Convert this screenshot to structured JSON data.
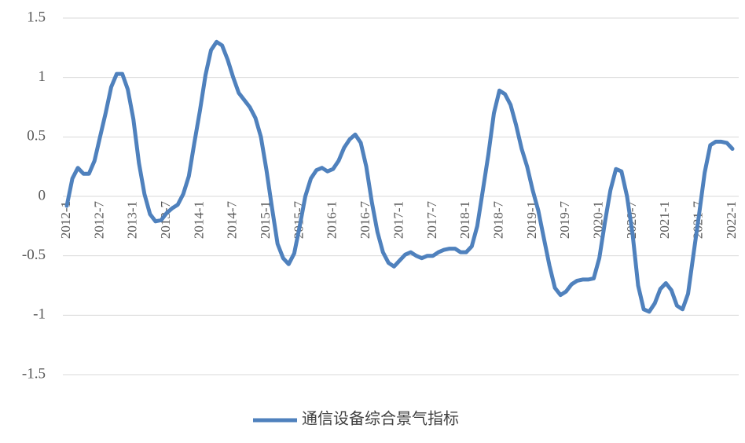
{
  "chart_data": {
    "type": "line",
    "categories": [
      "2012-1",
      null,
      null,
      null,
      null,
      null,
      "2012-7",
      null,
      null,
      null,
      null,
      null,
      "2013-1",
      null,
      null,
      null,
      null,
      null,
      "2013-7",
      null,
      null,
      null,
      null,
      null,
      "2014-1",
      null,
      null,
      null,
      null,
      null,
      "2014-7",
      null,
      null,
      null,
      null,
      null,
      "2015-1",
      null,
      null,
      null,
      null,
      null,
      "2015-7",
      null,
      null,
      null,
      null,
      null,
      "2016-1",
      null,
      null,
      null,
      null,
      null,
      "2016-7",
      null,
      null,
      null,
      null,
      null,
      "2017-1",
      null,
      null,
      null,
      null,
      null,
      "2017-7",
      null,
      null,
      null,
      null,
      null,
      "2018-1",
      null,
      null,
      null,
      null,
      null,
      "2018-7",
      null,
      null,
      null,
      null,
      null,
      "2019-1",
      null,
      null,
      null,
      null,
      null,
      "2019-7",
      null,
      null,
      null,
      null,
      null,
      "2020-1",
      null,
      null,
      null,
      null,
      null,
      "2020-7",
      null,
      null,
      null,
      null,
      null,
      "2021-1",
      null,
      null,
      null,
      null,
      null,
      "2021-7",
      null,
      null,
      null,
      null,
      null,
      "2022-1"
    ],
    "series": [
      {
        "name": "通信设备综合景气指标",
        "color": "#4f81bd",
        "values": [
          -0.08,
          0.15,
          0.24,
          0.19,
          0.19,
          0.3,
          0.5,
          0.7,
          0.92,
          1.03,
          1.03,
          0.9,
          0.65,
          0.28,
          0.02,
          -0.15,
          -0.21,
          -0.2,
          -0.14,
          -0.1,
          -0.07,
          0.02,
          0.17,
          0.45,
          0.72,
          1.02,
          1.23,
          1.3,
          1.27,
          1.15,
          1.0,
          0.87,
          0.81,
          0.75,
          0.66,
          0.5,
          0.22,
          -0.1,
          -0.4,
          -0.52,
          -0.57,
          -0.48,
          -0.25,
          0.0,
          0.15,
          0.22,
          0.24,
          0.21,
          0.23,
          0.3,
          0.41,
          0.48,
          0.52,
          0.45,
          0.25,
          -0.05,
          -0.3,
          -0.47,
          -0.56,
          -0.59,
          -0.54,
          -0.49,
          -0.47,
          -0.5,
          -0.52,
          -0.5,
          -0.5,
          -0.47,
          -0.45,
          -0.44,
          -0.44,
          -0.47,
          -0.47,
          -0.42,
          -0.25,
          0.05,
          0.35,
          0.7,
          0.89,
          0.86,
          0.77,
          0.6,
          0.4,
          0.25,
          0.05,
          -0.12,
          -0.35,
          -0.58,
          -0.77,
          -0.83,
          -0.8,
          -0.74,
          -0.71,
          -0.7,
          -0.7,
          -0.69,
          -0.52,
          -0.22,
          0.05,
          0.23,
          0.21,
          0.0,
          -0.32,
          -0.75,
          -0.95,
          -0.97,
          -0.9,
          -0.78,
          -0.73,
          -0.79,
          -0.92,
          -0.95,
          -0.82,
          -0.48,
          -0.15,
          0.2,
          0.43,
          0.46,
          0.46,
          0.45,
          0.4
        ]
      }
    ],
    "ylim": [
      -1.5,
      1.5
    ],
    "yticks": [
      -1.5,
      -1,
      -0.5,
      0,
      0.5,
      1,
      1.5
    ],
    "grid": true,
    "legend": "bottom"
  }
}
